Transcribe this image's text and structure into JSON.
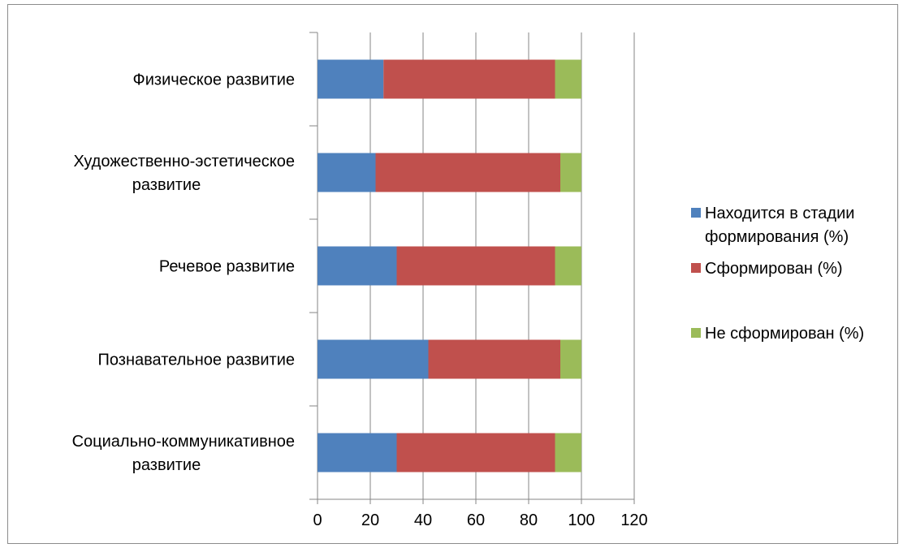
{
  "chart_data": {
    "type": "bar",
    "orientation": "horizontal",
    "stacked": true,
    "categories": [
      [
        "Социально-коммуникативное",
        "развитие"
      ],
      [
        "Познавательное развитие"
      ],
      [
        "Речевое развитие"
      ],
      [
        "Художественно-эстетическое",
        "развитие"
      ],
      [
        "Физическое развитие"
      ]
    ],
    "series": [
      {
        "name": [
          "Находится в стадии",
          "формирования (%)"
        ],
        "color": "#4f81bd",
        "values": [
          30,
          42,
          30,
          22,
          25
        ]
      },
      {
        "name": [
          "Сформирован (%)"
        ],
        "color": "#c0504d",
        "values": [
          60,
          50,
          60,
          70,
          65
        ]
      },
      {
        "name": [
          "Не сформирован (%)"
        ],
        "color": "#9bbb59",
        "values": [
          10,
          8,
          10,
          8,
          10
        ]
      }
    ],
    "xlim": [
      0,
      120
    ],
    "xticks": [
      "0",
      "20",
      "40",
      "60",
      "80",
      "100",
      "120"
    ],
    "grid": "vertical",
    "legend": "right"
  }
}
